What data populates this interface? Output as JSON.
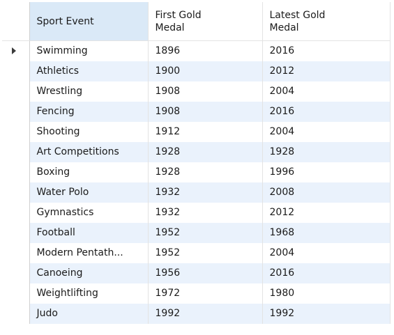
{
  "table": {
    "columns": [
      "Sport Event",
      "First Gold\nMedal",
      "Latest Gold\nMedal"
    ],
    "header_lines": [
      [
        "Sport Event"
      ],
      [
        "First Gold",
        "Medal"
      ],
      [
        "Latest Gold",
        "Medal"
      ]
    ],
    "current_row_indicator_icon": "triangle-right-icon",
    "rows": [
      {
        "sport": "Swimming",
        "first": "1896",
        "latest": "2016"
      },
      {
        "sport": "Athletics",
        "first": "1900",
        "latest": "2012"
      },
      {
        "sport": "Wrestling",
        "first": "1908",
        "latest": "2004"
      },
      {
        "sport": "Fencing",
        "first": "1908",
        "latest": "2016"
      },
      {
        "sport": "Shooting",
        "first": "1912",
        "latest": "2004"
      },
      {
        "sport": "Art Competitions",
        "first": "1928",
        "latest": "1928"
      },
      {
        "sport": "Boxing",
        "first": "1928",
        "latest": "1996"
      },
      {
        "sport": "Water Polo",
        "first": "1932",
        "latest": "2008"
      },
      {
        "sport": "Gymnastics",
        "first": "1932",
        "latest": "2012"
      },
      {
        "sport": "Football",
        "first": "1952",
        "latest": "1968"
      },
      {
        "sport": "Modern Pentath...",
        "first": "1952",
        "latest": "2004"
      },
      {
        "sport": "Canoeing",
        "first": "1956",
        "latest": "2016"
      },
      {
        "sport": "Weightlifting",
        "first": "1972",
        "latest": "1980"
      },
      {
        "sport": "Judo",
        "first": "1992",
        "latest": "1992"
      }
    ]
  },
  "colors": {
    "selected_header_bg": "#dae9f7",
    "alt_row_bg": "#eaf2fc",
    "grid_line": "#e3e3e3"
  }
}
